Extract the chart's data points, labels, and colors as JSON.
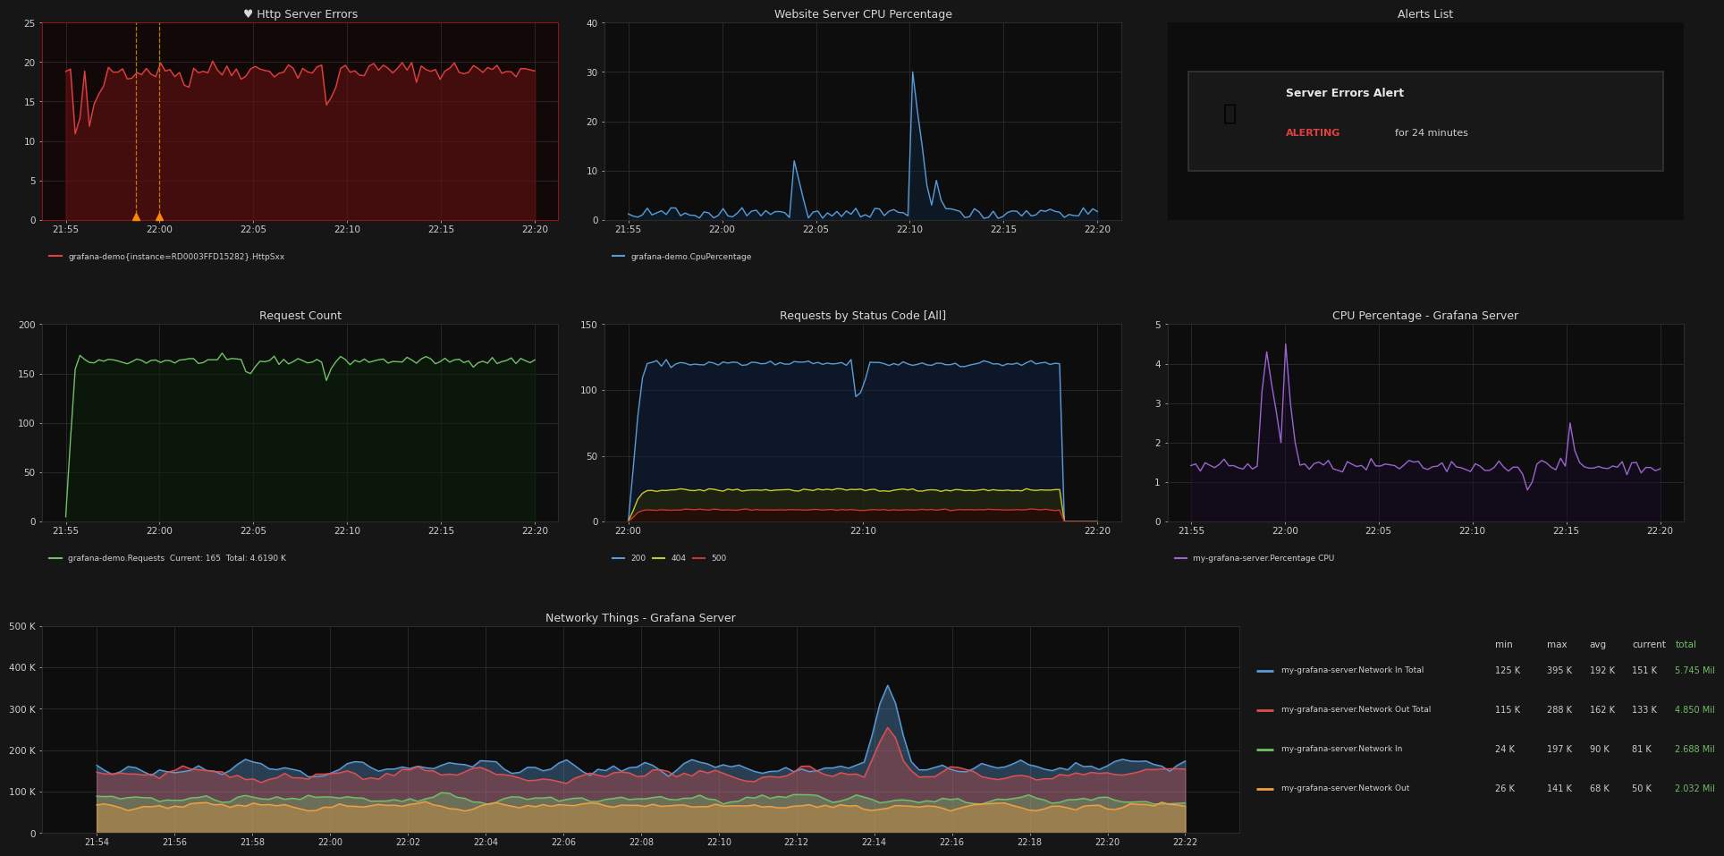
{
  "bg_color": "#161616",
  "panel_bg": "#0d0d0d",
  "panel_border": "#222222",
  "grid_color": "#333333",
  "text_color": "#d0d0d0",
  "title_color": "#d8d8d8",
  "panel1_title": "Http Server Errors",
  "panel1_line_color": "#e04040",
  "panel1_fill_color": "#5a1010",
  "panel1_bg": "#120808",
  "panel1_xticks": [
    "21:55",
    "22:00",
    "22:05",
    "22:10",
    "22:15",
    "22:20"
  ],
  "panel1_yticks": [
    0,
    5,
    10,
    15,
    20,
    25
  ],
  "panel1_ylim": [
    0,
    25
  ],
  "panel1_legend": "grafana-demo{instance=RD0003FFD15282}.HttpSxx",
  "panel1_vline_color": "#cc8800",
  "panel1_border_color": "#8b1515",
  "panel2_title": "Website Server CPU Percentage",
  "panel2_line_color": "#5b9bd5",
  "panel2_fill_color": "#0d2a45",
  "panel2_xticks": [
    "21:55",
    "22:00",
    "22:05",
    "22:10",
    "22:15",
    "22:20"
  ],
  "panel2_yticks": [
    0,
    10,
    20,
    30,
    40
  ],
  "panel2_ylim": [
    0,
    40
  ],
  "panel2_legend": "grafana-demo.CpuPercentage",
  "panel3_title": "Alerts List",
  "panel3_alert_title": "Server Errors Alert",
  "panel3_alert_status": "ALERTING",
  "panel3_alert_text": "for 24 minutes",
  "panel3_alert_color": "#e04040",
  "panel3_icon_color": "#cc2222",
  "panel4_title": "Request Count",
  "panel4_line_color": "#73bf69",
  "panel4_fill_color": "#0a200a",
  "panel4_xticks": [
    "21:55",
    "22:00",
    "22:05",
    "22:10",
    "22:15",
    "22:20"
  ],
  "panel4_yticks": [
    0,
    50,
    100,
    150,
    200
  ],
  "panel4_ylim": [
    0,
    200
  ],
  "panel4_legend": "grafana-demo.Requests  Current: 165  Total: 4.6190 K",
  "panel5_title": "Requests by Status Code [All]",
  "panel5_color_200": "#5b9bd5",
  "panel5_color_404": "#c8c82a",
  "panel5_color_500": "#cc3333",
  "panel5_fill_200": "#0d2040",
  "panel5_fill_404": "#2a2a00",
  "panel5_fill_500": "#2a0000",
  "panel5_xticks": [
    "22:00",
    "22:10",
    "22:20"
  ],
  "panel5_yticks": [
    0,
    50,
    100,
    150
  ],
  "panel5_ylim": [
    0,
    150
  ],
  "panel5_legend": [
    "200",
    "404",
    "500"
  ],
  "panel6_title": "CPU Percentage - Grafana Server",
  "panel6_line_color": "#9966cc",
  "panel6_fill_color": "#1a0a2a",
  "panel6_xticks": [
    "21:55",
    "22:00",
    "22:05",
    "22:10",
    "22:15",
    "22:20"
  ],
  "panel6_yticks": [
    0,
    1,
    2,
    3,
    4,
    5
  ],
  "panel6_ylim": [
    0,
    5
  ],
  "panel6_legend": "my-grafana-server.Percentage CPU",
  "panel7_title": "Networky Things - Grafana Server",
  "panel7_xticks": [
    "21:54",
    "21:56",
    "21:58",
    "22:00",
    "22:02",
    "22:04",
    "22:06",
    "22:08",
    "22:10",
    "22:12",
    "22:14",
    "22:16",
    "22:18",
    "22:20",
    "22:22"
  ],
  "panel7_yticks": [
    "0",
    "100 K",
    "200 K",
    "300 K",
    "400 K",
    "500 K"
  ],
  "panel7_ytick_vals": [
    0,
    100000,
    200000,
    300000,
    400000,
    500000
  ],
  "panel7_ylim": [
    0,
    500000
  ],
  "panel7_color_in_total": "#5b9bd5",
  "panel7_color_out_total": "#e05050",
  "panel7_color_in": "#73bf69",
  "panel7_color_out": "#f0a040",
  "panel7_legend": [
    {
      "label": "my-grafana-server.Network In Total",
      "color": "#5b9bd5",
      "min": "125 K",
      "max": "395 K",
      "avg": "192 K",
      "current": "151 K",
      "total": "5.745 Mil"
    },
    {
      "label": "my-grafana-server.Network Out Total",
      "color": "#e05050",
      "min": "115 K",
      "max": "288 K",
      "avg": "162 K",
      "current": "133 K",
      "total": "4.850 Mil"
    },
    {
      "label": "my-grafana-server.Network In",
      "color": "#73bf69",
      "min": "24 K",
      "max": "197 K",
      "avg": "90 K",
      "current": "81 K",
      "total": "2.688 Mil"
    },
    {
      "label": "my-grafana-server.Network Out",
      "color": "#f0a040",
      "min": "26 K",
      "max": "141 K",
      "avg": "68 K",
      "current": "50 K",
      "total": "2.032 Mil"
    }
  ]
}
